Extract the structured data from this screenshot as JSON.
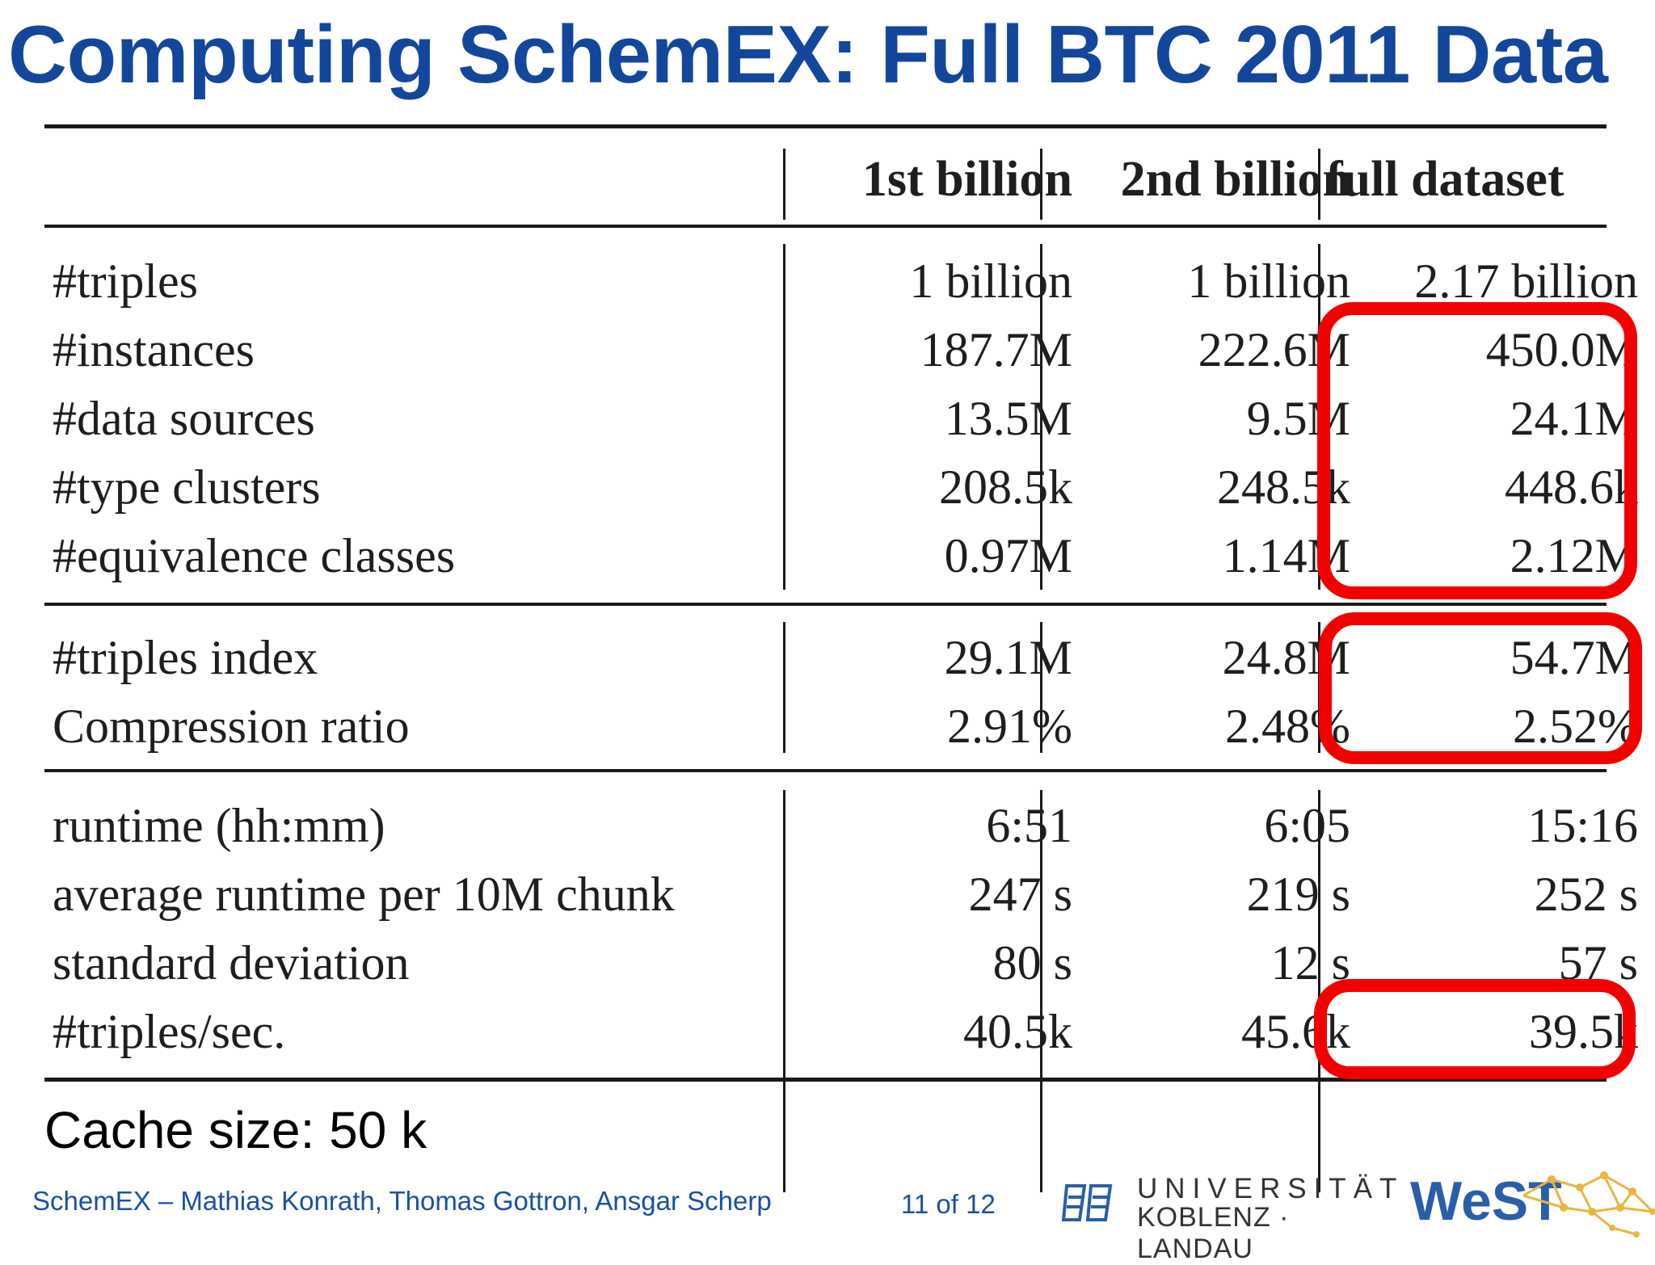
{
  "title": "Computing SchemEX: Full BTC 2011 Data",
  "table": {
    "columns": [
      "1st billion",
      "2nd billion",
      "full dataset"
    ],
    "groups": [
      {
        "rows": [
          {
            "label": "#triples",
            "values": [
              "1 billion",
              "1 billion",
              "2.17 billion"
            ]
          },
          {
            "label": "#instances",
            "values": [
              "187.7M",
              "222.6M",
              "450.0M"
            ]
          },
          {
            "label": "#data sources",
            "values": [
              "13.5M",
              "9.5M",
              "24.1M"
            ]
          },
          {
            "label": "#type clusters",
            "values": [
              "208.5k",
              "248.5k",
              "448.6k"
            ]
          },
          {
            "label": "#equivalence classes",
            "values": [
              "0.97M",
              "1.14M",
              "2.12M"
            ]
          }
        ]
      },
      {
        "rows": [
          {
            "label": "#triples index",
            "values": [
              "29.1M",
              "24.8M",
              "54.7M"
            ]
          },
          {
            "label": "Compression ratio",
            "values": [
              "2.91%",
              "2.48%",
              "2.52%"
            ]
          }
        ]
      },
      {
        "rows": [
          {
            "label": "runtime (hh:mm)",
            "values": [
              "6:51",
              "6:05",
              "15:16"
            ]
          },
          {
            "label": "average runtime per 10M chunk",
            "values": [
              "247 s",
              "219 s",
              "252 s"
            ]
          },
          {
            "label": "standard deviation",
            "values": [
              "80 s",
              "12 s",
              "57 s"
            ]
          },
          {
            "label": "#triples/sec.",
            "values": [
              "40.5k",
              "45.6k",
              "39.5k"
            ]
          }
        ]
      }
    ]
  },
  "highlight_color": "#f20000",
  "title_color": "#12479b",
  "cache_note": "Cache size: 50 k",
  "footer": {
    "authors": "SchemEX – Mathias Konrath, Thomas Gottron, Ansgar Scherp",
    "page": "11 of 12",
    "university_line1": "UNIVERSITÄT",
    "university_line2": "KOBLENZ · LANDAU",
    "group_logo": "WeST"
  }
}
